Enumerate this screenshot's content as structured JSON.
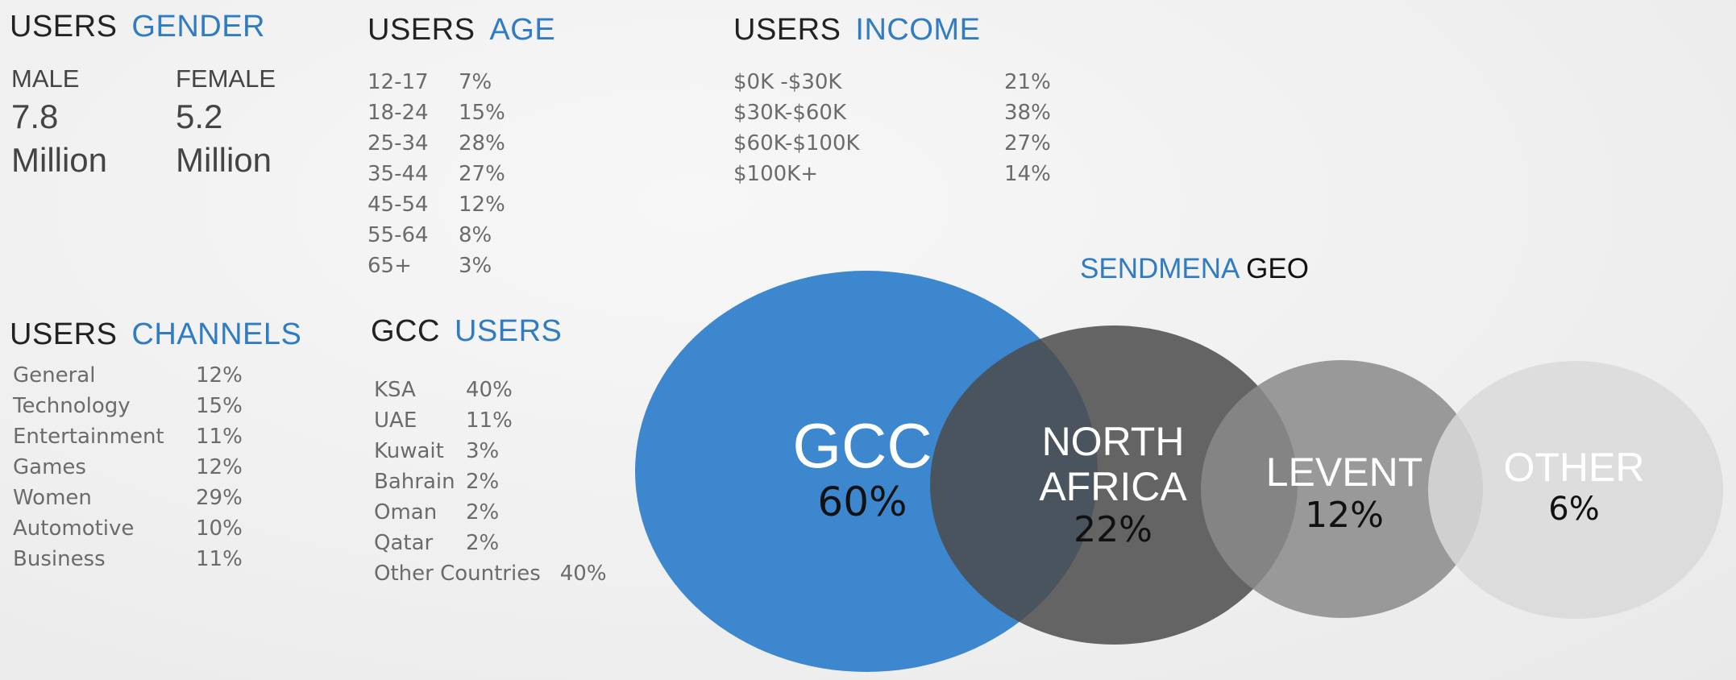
{
  "gender": {
    "title_a": "USERS",
    "title_b": "GENDER",
    "male_label": "MALE",
    "male_value": "7.8",
    "male_unit": "Million",
    "female_label": "FEMALE",
    "female_value": "5.2",
    "female_unit": "Million"
  },
  "age": {
    "title_a": "USERS",
    "title_b": "AGE",
    "rows": [
      {
        "label": "12-17",
        "value": "7%"
      },
      {
        "label": "18-24",
        "value": "15%"
      },
      {
        "label": "25-34",
        "value": "28%"
      },
      {
        "label": "35-44",
        "value": "27%"
      },
      {
        "label": "45-54",
        "value": "12%"
      },
      {
        "label": "55-64",
        "value": "8%"
      },
      {
        "label": "65+",
        "value": "3%"
      }
    ]
  },
  "income": {
    "title_a": "USERS",
    "title_b": "INCOME",
    "rows": [
      {
        "label": "$0K  -$30K",
        "value": "21%"
      },
      {
        "label": "$30K-$60K",
        "value": "38%"
      },
      {
        "label": "$60K-$100K",
        "value": "27%"
      },
      {
        "label": "$100K+",
        "value": "14%"
      }
    ]
  },
  "channels": {
    "title_a": "USERS",
    "title_b": "CHANNELS",
    "rows": [
      {
        "label": "General",
        "value": "12%"
      },
      {
        "label": "Technology",
        "value": "15%"
      },
      {
        "label": "Entertainment",
        "value": "11%"
      },
      {
        "label": "Games",
        "value": "12%"
      },
      {
        "label": "Women",
        "value": "29%"
      },
      {
        "label": "Automotive",
        "value": "10%"
      },
      {
        "label": "Business",
        "value": "11%"
      }
    ]
  },
  "gcc": {
    "title_a": "GCC",
    "title_b": "USERS",
    "rows": [
      {
        "label": "KSA",
        "value": "40%"
      },
      {
        "label": "UAE",
        "value": "11%"
      },
      {
        "label": "Kuwait",
        "value": "3%"
      },
      {
        "label": "Bahrain",
        "value": "2%"
      },
      {
        "label": "Oman",
        "value": "2%"
      },
      {
        "label": "Qatar",
        "value": "2%"
      },
      {
        "label": "Other Countries",
        "value": "40%"
      }
    ]
  },
  "geo": {
    "title_a": "SENDMENA",
    "title_b": " GEO",
    "regions": [
      {
        "name_line1": "GCC",
        "name_line2": "",
        "percent": "60%",
        "color": "#3d87cf"
      },
      {
        "name_line1": "NORTH",
        "name_line2": "AFRICA",
        "percent": "22%",
        "color": "#4b4b4b"
      },
      {
        "name_line1": "LEVENT",
        "name_line2": "",
        "percent": "12%",
        "color": "#8a8a8a"
      },
      {
        "name_line1": "OTHER",
        "name_line2": "",
        "percent": "6%",
        "color": "#d9d9d9"
      }
    ]
  }
}
